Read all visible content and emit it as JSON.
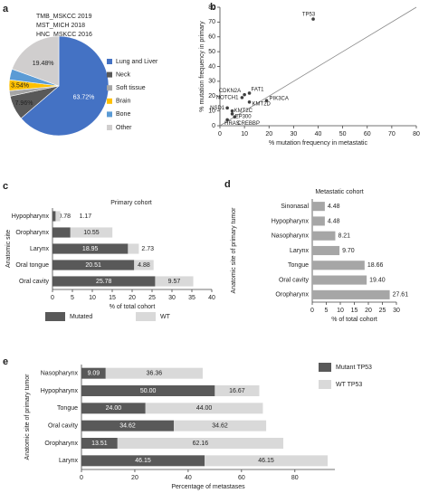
{
  "chart_data": [
    {
      "panel": "a",
      "type": "pie",
      "title": [
        "TMB_MSKCC 2019",
        "MST_MICH 2018",
        "HNC_MSKCC 2016"
      ],
      "categories": [
        "Lung and Liver",
        "Neck",
        "Soft tissue",
        "Brain",
        "Bone",
        "Other"
      ],
      "values": [
        63.72,
        7.96,
        1.77,
        3.54,
        3.53,
        19.48
      ],
      "value_labels": [
        "63.72%",
        "7.96%",
        null,
        "3.54%",
        null,
        "19.48%"
      ],
      "colors": [
        "#4472c4",
        "#595959",
        "#a6a6a6",
        "#ffc000",
        "#5b9bd5",
        "#d0cece"
      ],
      "legend": "right"
    },
    {
      "panel": "b",
      "type": "scatter",
      "x": [
        38,
        12,
        10,
        9,
        19,
        12,
        3,
        5,
        5,
        6,
        3
      ],
      "values": [
        72,
        22,
        21,
        19,
        17,
        16,
        12,
        10,
        8,
        6,
        4
      ],
      "labels": [
        "TP53",
        "FAT1",
        "CDKN2A",
        "NOTCH1",
        "PIK3CA",
        "KMT2D",
        "NSD1",
        "KMT2C",
        "EP300",
        "CREBBP",
        "HRAS"
      ],
      "color": "#404040",
      "xlim": [
        0,
        80
      ],
      "xticks": [
        0,
        10,
        20,
        30,
        40,
        50,
        60,
        70,
        80
      ],
      "ylim": [
        0,
        80
      ],
      "yticks": [
        0,
        10,
        20,
        30,
        40,
        50,
        60,
        70,
        80
      ],
      "xlabel": "% mutation frequency in metastatic",
      "ylabel": "% mutation frequency in primary"
    },
    {
      "panel": "c",
      "type": "stacked_barh",
      "title": "Primary cohort",
      "categories": [
        "Hypopharynx",
        "Oropharynx",
        "Larynx",
        "Oral tongue",
        "Oral cavity"
      ],
      "series": [
        {
          "name": "Mutated",
          "color": "#595959",
          "values": [
            0.78,
            4.49,
            18.95,
            20.51,
            25.78
          ]
        },
        {
          "name": "WT",
          "color": "#d9d9d9",
          "values": [
            1.17,
            10.55,
            2.73,
            4.88,
            9.57
          ]
        }
      ],
      "xlim": [
        0,
        40
      ],
      "xticks": [
        0,
        5,
        10,
        15,
        20,
        25,
        30,
        35,
        40
      ],
      "xlabel": "% of total cohort",
      "ylabel": "Anatomic site",
      "legend": "bottom"
    },
    {
      "panel": "d",
      "type": "barh",
      "title": "Metastatic cohort",
      "categories": [
        "Sinonasal",
        "Hypopharynx",
        "Nasopharynx",
        "Larynx",
        "Tongue",
        "Oral cavity",
        "Oropharynx"
      ],
      "values": [
        4.48,
        4.48,
        8.21,
        9.7,
        18.66,
        19.4,
        27.61
      ],
      "value_labels": [
        "4.48",
        "4.48",
        "8.21",
        "9.70",
        "18.66",
        "19.40",
        "27.61"
      ],
      "color": "#a6a6a6",
      "xlim": [
        0,
        30
      ],
      "xticks": [
        0,
        5,
        10,
        15,
        20,
        25,
        30
      ],
      "xlabel": "% of total cohort",
      "ylabel": "Anatomic site of primary tumor"
    },
    {
      "panel": "e",
      "type": "stacked_barh",
      "categories": [
        "Nasopharynx",
        "Hypopharynx",
        "Tongue",
        "Oral cavity",
        "Oropharynx",
        "Larynx"
      ],
      "series": [
        {
          "name": "Mutant TP53",
          "color": "#595959",
          "values": [
            9.09,
            50,
            24,
            34.62,
            13.51,
            46.15
          ],
          "value_labels": [
            "9.09",
            "50.00",
            "24.00",
            "34.62",
            "13.51",
            "46.15"
          ]
        },
        {
          "name": "WT TP53",
          "color": "#d9d9d9",
          "values": [
            36.36,
            16.67,
            44,
            34.62,
            62.16,
            46.15
          ],
          "value_labels": [
            "36.36",
            "16.67",
            "44.00",
            "34.62",
            "62.16",
            "46.15"
          ]
        }
      ],
      "xlim": [
        0,
        95
      ],
      "xticks": [
        0,
        20,
        40,
        60,
        80
      ],
      "xlabel": "Percentage of metastases",
      "ylabel": "Anatomic site of primary tumor",
      "legend": "right"
    }
  ]
}
